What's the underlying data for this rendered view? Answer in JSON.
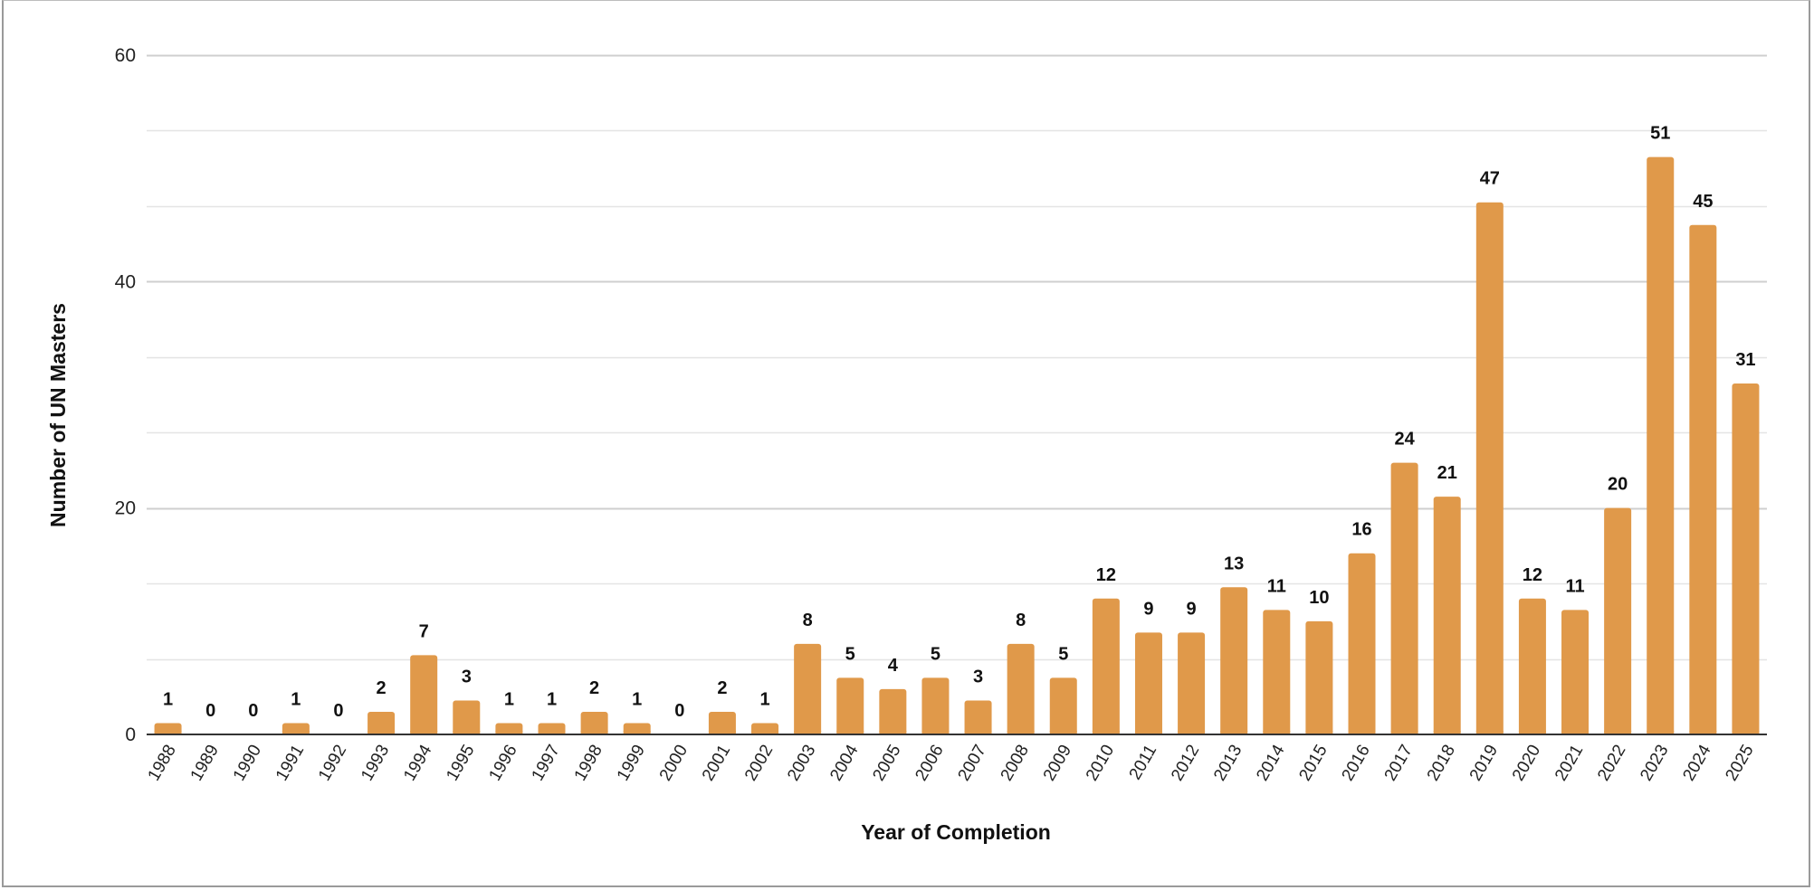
{
  "chart_data": {
    "type": "bar",
    "title": "",
    "xlabel": "Year of Completion",
    "ylabel": "Number of UN Masters",
    "ylim": [
      0,
      60
    ],
    "yticks": [
      0,
      20,
      40,
      60
    ],
    "minor_gridline_step": 6.6667,
    "grid": true,
    "legend": "none",
    "bar_color": "#E0994A",
    "categories": [
      "1988",
      "1989",
      "1990",
      "1991",
      "1992",
      "1993",
      "1994",
      "1995",
      "1996",
      "1997",
      "1998",
      "1999",
      "2000",
      "2001",
      "2002",
      "2003",
      "2004",
      "2005",
      "2006",
      "2007",
      "2008",
      "2009",
      "2010",
      "2011",
      "2012",
      "2013",
      "2014",
      "2015",
      "2016",
      "2017",
      "2018",
      "2019",
      "2020",
      "2021",
      "2022",
      "2023",
      "2024",
      "2025"
    ],
    "values": [
      1,
      0,
      0,
      1,
      0,
      2,
      7,
      3,
      1,
      1,
      2,
      1,
      0,
      2,
      1,
      8,
      5,
      4,
      5,
      3,
      8,
      5,
      12,
      9,
      9,
      13,
      11,
      10,
      16,
      24,
      21,
      47,
      12,
      11,
      20,
      51,
      45,
      31
    ],
    "data_labels": true
  }
}
